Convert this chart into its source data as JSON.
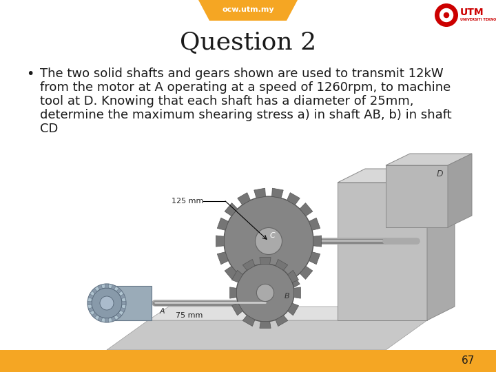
{
  "title": "Question 2",
  "title_fontsize": 26,
  "title_font": "serif",
  "lines": [
    "The two solid shafts and gears shown are used to transmit 12kW",
    "from the motor at A operating at a speed of 1260rpm, to machine",
    "tool at D. Knowing that each shaft has a diameter of 25mm,",
    "determine the maximum shearing stress a) in shaft AB, b) in shaft",
    "CD"
  ],
  "bullet_fontsize": 13,
  "page_number": "67",
  "bg_color": "#ffffff",
  "header_bar_color": "#F5A623",
  "header_text": "ocw.utm.my",
  "header_text_color": "#ffffff",
  "footer_bar_color": "#F5A623",
  "footer_text_color": "#1a1a1a",
  "text_color": "#1a1a1a",
  "gray_light": "#d0d0d0",
  "gray_mid": "#aaaaaa",
  "gray_dark": "#888888",
  "shaft_color": "#999999",
  "gear_color": "#787878"
}
